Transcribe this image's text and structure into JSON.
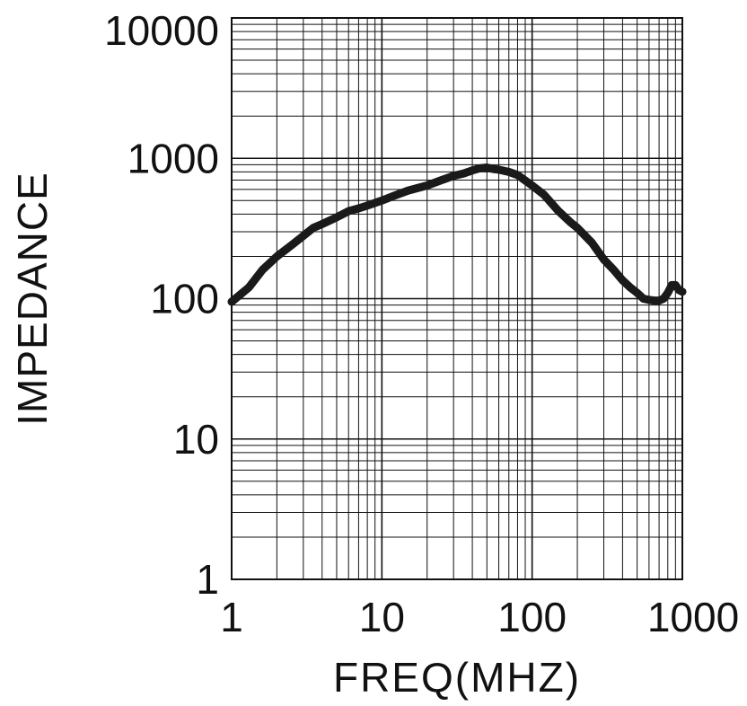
{
  "chart_data": {
    "type": "line",
    "title": "",
    "xlabel": "FREQ(MHZ)",
    "ylabel": "IMPEDANCE",
    "xscale": "log",
    "yscale": "log",
    "xlim": [
      1,
      1000
    ],
    "ylim": [
      1,
      10000
    ],
    "grid": true,
    "x_ticks": [
      "1",
      "10",
      "100",
      "1000"
    ],
    "y_ticks": [
      "1",
      "10",
      "100",
      "1000",
      "10000"
    ],
    "series": [
      {
        "color": "#1a1a1a",
        "x": [
          1,
          1.3,
          1.6,
          2,
          2.5,
          3,
          3.5,
          4,
          5,
          6,
          7,
          8,
          10,
          12,
          15,
          20,
          25,
          30,
          35,
          40,
          45,
          50,
          55,
          60,
          70,
          80,
          100,
          120,
          150,
          180,
          200,
          250,
          300,
          350,
          400,
          450,
          500,
          550,
          600,
          650,
          700,
          750,
          800,
          850,
          900,
          950,
          1000
        ],
        "y": [
          95,
          120,
          160,
          200,
          240,
          280,
          320,
          340,
          380,
          420,
          440,
          460,
          500,
          540,
          590,
          640,
          700,
          750,
          780,
          820,
          850,
          860,
          840,
          830,
          800,
          760,
          640,
          550,
          420,
          350,
          320,
          250,
          190,
          160,
          135,
          120,
          110,
          100,
          98,
          97,
          97,
          100,
          110,
          125,
          125,
          115,
          112
        ]
      }
    ]
  }
}
